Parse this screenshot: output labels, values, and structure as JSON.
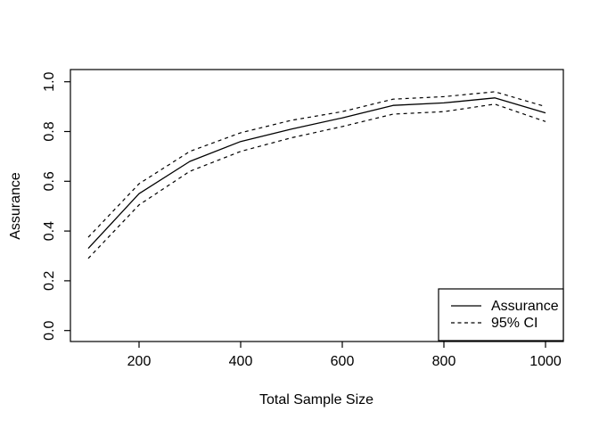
{
  "colors": {
    "foreground": "#000000",
    "background": "#ffffff"
  },
  "chart_data": {
    "type": "line",
    "title": "",
    "xlabel": "Total Sample Size",
    "ylabel": "Assurance",
    "xlim": [
      100,
      1000
    ],
    "ylim": [
      0.0,
      1.0
    ],
    "grid": false,
    "x": [
      100,
      200,
      300,
      400,
      500,
      600,
      700,
      800,
      900,
      1000
    ],
    "series": [
      {
        "name": "Assurance",
        "line": "solid",
        "values": [
          0.33,
          0.55,
          0.68,
          0.76,
          0.81,
          0.855,
          0.905,
          0.915,
          0.935,
          0.875
        ]
      },
      {
        "name": "95% CI upper",
        "line": "dashed",
        "values": [
          0.375,
          0.59,
          0.72,
          0.795,
          0.845,
          0.88,
          0.93,
          0.94,
          0.96,
          0.9
        ]
      },
      {
        "name": "95% CI lower",
        "line": "dashed",
        "values": [
          0.29,
          0.505,
          0.64,
          0.72,
          0.775,
          0.82,
          0.87,
          0.88,
          0.91,
          0.84
        ]
      }
    ],
    "x_ticks": {
      "values": [
        200,
        400,
        600,
        800,
        1000
      ],
      "labels": [
        "200",
        "400",
        "600",
        "800",
        "1000"
      ]
    },
    "y_ticks": {
      "values": [
        0.0,
        0.2,
        0.4,
        0.6,
        0.8,
        1.0
      ],
      "labels": [
        "0.0",
        "0.2",
        "0.4",
        "0.6",
        "0.8",
        "1.0"
      ]
    },
    "legend": {
      "position": "bottomright",
      "entries": [
        {
          "label": "Assurance",
          "line": "solid"
        },
        {
          "label": "95% CI",
          "line": "dashed"
        }
      ]
    }
  }
}
